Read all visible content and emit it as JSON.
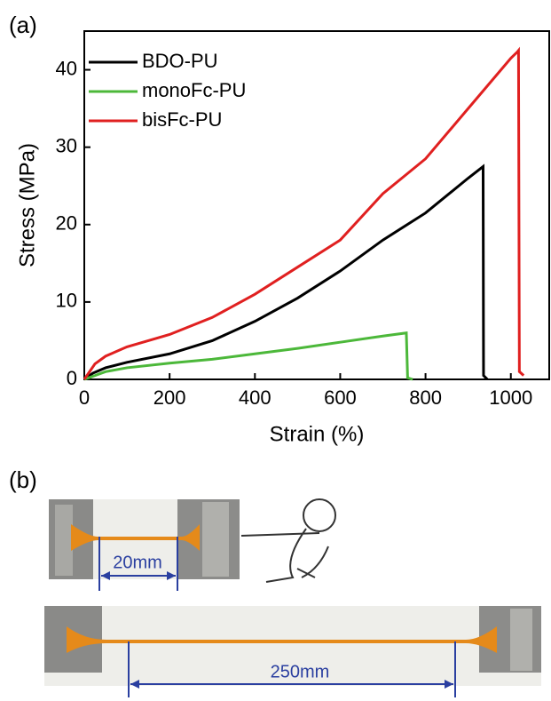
{
  "chart_data": {
    "type": "line",
    "panel_label": "(a)",
    "x_label": "Strain (%)",
    "y_label": "Stress (MPa)",
    "xlim": [
      0,
      1090
    ],
    "ylim": [
      0,
      45
    ],
    "xticks": [
      0,
      200,
      400,
      600,
      800,
      1000
    ],
    "yticks": [
      0,
      10,
      20,
      30,
      40
    ],
    "legend": "upper-left",
    "series": [
      {
        "name": "BDO-PU",
        "color": "#000000",
        "x": [
          0,
          20,
          50,
          100,
          200,
          300,
          400,
          500,
          600,
          700,
          800,
          900,
          935,
          936,
          945
        ],
        "values": [
          0,
          0.8,
          1.5,
          2.2,
          3.3,
          5,
          7.5,
          10.5,
          14,
          18,
          21.5,
          26,
          27.5,
          0.5,
          0
        ]
      },
      {
        "name": "monoFc-PU",
        "color": "#4cb83a",
        "x": [
          0,
          50,
          100,
          200,
          300,
          400,
          500,
          600,
          700,
          755,
          758,
          770
        ],
        "values": [
          0,
          1,
          1.5,
          2.1,
          2.6,
          3.3,
          4,
          4.8,
          5.6,
          6,
          0.2,
          0
        ]
      },
      {
        "name": "bisFc-PU",
        "color": "#e02020",
        "x": [
          0,
          25,
          50,
          100,
          200,
          300,
          400,
          500,
          600,
          700,
          800,
          900,
          1000,
          1015,
          1018,
          1020,
          1030
        ],
        "values": [
          0,
          2,
          3,
          4.2,
          5.8,
          8,
          11,
          14.5,
          18,
          24,
          28.5,
          35,
          41.5,
          42.3,
          42.5,
          1,
          0.5
        ]
      }
    ]
  },
  "photo": {
    "panel_label": "(b)",
    "short_length": "20mm",
    "long_length": "250mm"
  }
}
